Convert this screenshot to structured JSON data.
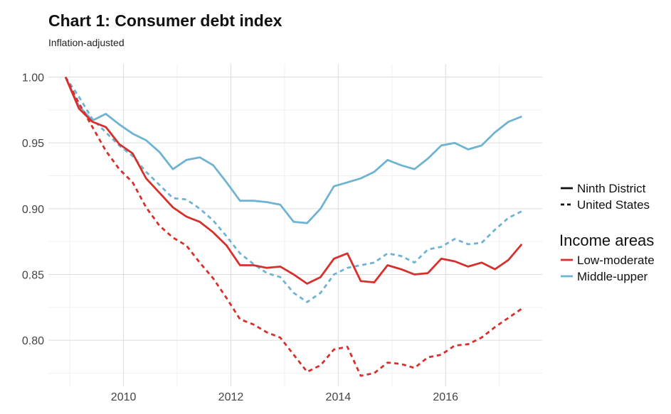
{
  "chart_data": {
    "type": "line",
    "title": "Chart 1: Consumer debt index",
    "subtitle": "Inflation-adjusted",
    "xlabel": "",
    "ylabel": "",
    "xlim": [
      2008.6,
      2017.8
    ],
    "ylim": [
      0.765,
      1.01
    ],
    "x_ticks": [
      2010,
      2012,
      2014,
      2016
    ],
    "y_ticks": [
      0.8,
      0.85,
      0.9,
      0.95,
      1.0
    ],
    "y_tick_labels": [
      "0.80",
      "0.85",
      "0.90",
      "0.95",
      "1.00"
    ],
    "grid": true,
    "legend_position": "right",
    "legend": {
      "linetype_entries": [
        {
          "label": "Ninth District",
          "dash": "solid"
        },
        {
          "label": "United States",
          "dash": "dashed"
        }
      ],
      "color_title": "Income areas",
      "color_entries": [
        {
          "label": "Low-moderate",
          "color": "#d7302c"
        },
        {
          "label": "Middle-upper",
          "color": "#6fb3d2"
        }
      ]
    },
    "series": [
      {
        "income": "Middle-upper",
        "area": "Ninth District",
        "color": "#6fb3d2",
        "dash": "solid",
        "points": [
          [
            2008.92,
            1.0
          ],
          [
            2009.17,
            0.978
          ],
          [
            2009.42,
            0.967
          ],
          [
            2009.67,
            0.972
          ],
          [
            2009.92,
            0.964
          ],
          [
            2010.17,
            0.957
          ],
          [
            2010.42,
            0.952
          ],
          [
            2010.67,
            0.943
          ],
          [
            2010.92,
            0.93
          ],
          [
            2011.17,
            0.937
          ],
          [
            2011.42,
            0.939
          ],
          [
            2011.67,
            0.933
          ],
          [
            2011.92,
            0.92
          ],
          [
            2012.17,
            0.906
          ],
          [
            2012.42,
            0.906
          ],
          [
            2012.67,
            0.905
          ],
          [
            2012.92,
            0.903
          ],
          [
            2013.17,
            0.89
          ],
          [
            2013.42,
            0.889
          ],
          [
            2013.67,
            0.9
          ],
          [
            2013.92,
            0.917
          ],
          [
            2014.17,
            0.92
          ],
          [
            2014.42,
            0.923
          ],
          [
            2014.67,
            0.928
          ],
          [
            2014.92,
            0.937
          ],
          [
            2015.17,
            0.933
          ],
          [
            2015.42,
            0.93
          ],
          [
            2015.67,
            0.938
          ],
          [
            2015.92,
            0.948
          ],
          [
            2016.17,
            0.95
          ],
          [
            2016.42,
            0.945
          ],
          [
            2016.67,
            0.948
          ],
          [
            2016.92,
            0.958
          ],
          [
            2017.17,
            0.966
          ],
          [
            2017.42,
            0.97
          ]
        ]
      },
      {
        "income": "Middle-upper",
        "area": "United States",
        "color": "#6fb3d2",
        "dash": "dashed",
        "points": [
          [
            2008.92,
            1.0
          ],
          [
            2009.17,
            0.985
          ],
          [
            2009.42,
            0.968
          ],
          [
            2009.67,
            0.958
          ],
          [
            2009.92,
            0.948
          ],
          [
            2010.17,
            0.94
          ],
          [
            2010.42,
            0.928
          ],
          [
            2010.67,
            0.918
          ],
          [
            2010.92,
            0.908
          ],
          [
            2011.17,
            0.907
          ],
          [
            2011.42,
            0.9
          ],
          [
            2011.67,
            0.891
          ],
          [
            2011.92,
            0.879
          ],
          [
            2012.17,
            0.866
          ],
          [
            2012.42,
            0.858
          ],
          [
            2012.67,
            0.851
          ],
          [
            2012.92,
            0.848
          ],
          [
            2013.17,
            0.836
          ],
          [
            2013.42,
            0.829
          ],
          [
            2013.67,
            0.836
          ],
          [
            2013.92,
            0.85
          ],
          [
            2014.17,
            0.855
          ],
          [
            2014.42,
            0.857
          ],
          [
            2014.67,
            0.859
          ],
          [
            2014.92,
            0.866
          ],
          [
            2015.17,
            0.864
          ],
          [
            2015.42,
            0.859
          ],
          [
            2015.67,
            0.869
          ],
          [
            2015.92,
            0.871
          ],
          [
            2016.17,
            0.877
          ],
          [
            2016.42,
            0.873
          ],
          [
            2016.67,
            0.874
          ],
          [
            2016.92,
            0.884
          ],
          [
            2017.17,
            0.893
          ],
          [
            2017.42,
            0.898
          ]
        ]
      },
      {
        "income": "Low-moderate",
        "area": "Ninth District",
        "color": "#d7302c",
        "dash": "solid",
        "points": [
          [
            2008.92,
            1.0
          ],
          [
            2009.17,
            0.976
          ],
          [
            2009.42,
            0.966
          ],
          [
            2009.67,
            0.962
          ],
          [
            2009.92,
            0.949
          ],
          [
            2010.17,
            0.942
          ],
          [
            2010.42,
            0.923
          ],
          [
            2010.67,
            0.912
          ],
          [
            2010.92,
            0.901
          ],
          [
            2011.17,
            0.894
          ],
          [
            2011.42,
            0.89
          ],
          [
            2011.67,
            0.882
          ],
          [
            2011.92,
            0.872
          ],
          [
            2012.17,
            0.857
          ],
          [
            2012.42,
            0.857
          ],
          [
            2012.67,
            0.855
          ],
          [
            2012.92,
            0.856
          ],
          [
            2013.17,
            0.85
          ],
          [
            2013.42,
            0.843
          ],
          [
            2013.67,
            0.848
          ],
          [
            2013.92,
            0.862
          ],
          [
            2014.17,
            0.866
          ],
          [
            2014.42,
            0.845
          ],
          [
            2014.67,
            0.844
          ],
          [
            2014.92,
            0.857
          ],
          [
            2015.17,
            0.854
          ],
          [
            2015.42,
            0.85
          ],
          [
            2015.67,
            0.851
          ],
          [
            2015.92,
            0.862
          ],
          [
            2016.17,
            0.86
          ],
          [
            2016.42,
            0.856
          ],
          [
            2016.67,
            0.859
          ],
          [
            2016.92,
            0.854
          ],
          [
            2017.17,
            0.861
          ],
          [
            2017.42,
            0.873
          ]
        ]
      },
      {
        "income": "Low-moderate",
        "area": "United States",
        "color": "#d7302c",
        "dash": "dashed",
        "points": [
          [
            2008.92,
            1.0
          ],
          [
            2009.17,
            0.98
          ],
          [
            2009.42,
            0.962
          ],
          [
            2009.67,
            0.944
          ],
          [
            2009.92,
            0.93
          ],
          [
            2010.17,
            0.92
          ],
          [
            2010.42,
            0.901
          ],
          [
            2010.67,
            0.887
          ],
          [
            2010.92,
            0.878
          ],
          [
            2011.17,
            0.872
          ],
          [
            2011.42,
            0.859
          ],
          [
            2011.67,
            0.847
          ],
          [
            2011.92,
            0.832
          ],
          [
            2012.17,
            0.816
          ],
          [
            2012.42,
            0.812
          ],
          [
            2012.67,
            0.806
          ],
          [
            2012.92,
            0.802
          ],
          [
            2013.17,
            0.789
          ],
          [
            2013.42,
            0.776
          ],
          [
            2013.67,
            0.781
          ],
          [
            2013.92,
            0.793
          ],
          [
            2014.17,
            0.795
          ],
          [
            2014.42,
            0.773
          ],
          [
            2014.67,
            0.775
          ],
          [
            2014.92,
            0.783
          ],
          [
            2015.17,
            0.782
          ],
          [
            2015.42,
            0.779
          ],
          [
            2015.67,
            0.787
          ],
          [
            2015.92,
            0.789
          ],
          [
            2016.17,
            0.796
          ],
          [
            2016.42,
            0.797
          ],
          [
            2016.67,
            0.802
          ],
          [
            2016.92,
            0.81
          ],
          [
            2017.17,
            0.817
          ],
          [
            2017.42,
            0.824
          ]
        ]
      }
    ]
  }
}
